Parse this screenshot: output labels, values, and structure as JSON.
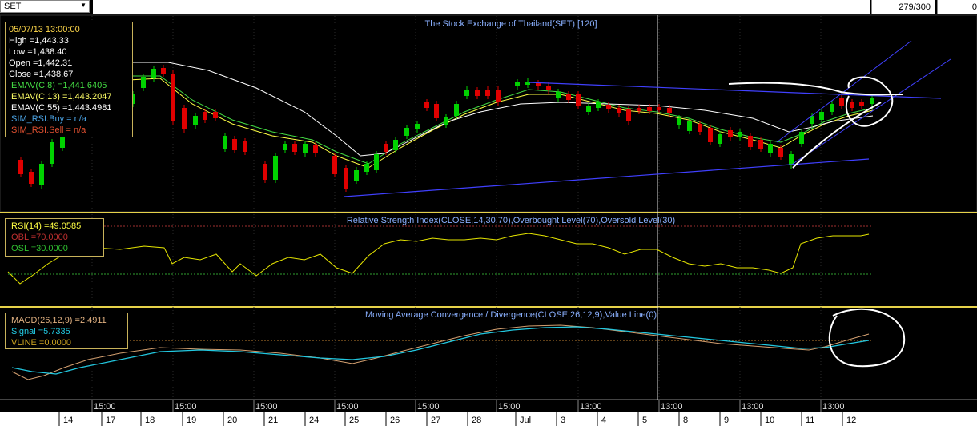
{
  "toolbar": {
    "symbol": "SET",
    "dropdown_icon": "triangle-down-icon",
    "page_counter": "279/300",
    "right_value": "0"
  },
  "panels": {
    "price": {
      "title": "The Stock Exchange of Thailand(SET) [120]",
      "info": {
        "datetime": "05/07/13 13:00:00",
        "high": "High  =1,443.33",
        "low": "Low  =1,438.40",
        "open": "Open  =1,442.31",
        "close": "Close  =1,438.67",
        "emav8": ".EMAV(C,8)   =1,441.6405",
        "emav13": ".EMAV(C,13)  =1,443.2047",
        "emav55": ".EMAV(C,55)  =1,443.4981",
        "rsibuy": ".SIM_RSI.Buy    = n/a",
        "rsisell": ".SIM_RSI.Sell   = n/a"
      }
    },
    "rsi": {
      "title": "Relative Strength Index(CLOSE,14,30,70),Overbought Level(70),Oversold Level(30)",
      "info": {
        "rsi": ".RSI(14)   =49.0585",
        "obl": ".OBL   =70.0000",
        "osl": ".OSL   =30.0000"
      }
    },
    "macd": {
      "title": "Moving Average Convergence / Divergence(CLOSE,26,12,9),Value Line(0)",
      "info": {
        "macd": ".MACD(26,12,9)   =2.4911",
        "signal": ".Signal   =5.7335",
        "vline": ".VLINE   =0.0000"
      }
    }
  },
  "time_axis": {
    "hour_labels": [
      "15:00",
      "15:00",
      "15:00",
      "15:00",
      "15:00",
      "15:00",
      "13:00",
      "13:00",
      "13:00",
      "13:00"
    ],
    "day_labels": [
      "14",
      "17",
      "18",
      "19",
      "20",
      "21",
      "24",
      "25",
      "26",
      "27",
      "28",
      "Jul",
      "3",
      "4",
      "5",
      "8",
      "9",
      "10",
      "11",
      "12"
    ]
  },
  "colors": {
    "up": "#00d200",
    "down": "#e00000",
    "ema8": "#ffff44",
    "ema13": "#44dd44",
    "ema55": "#ffffff",
    "trend": "#4040ff",
    "rsi": "#e6e600",
    "macd": "#d4a070",
    "signal": "#22c8e0",
    "border": "#e6d24a"
  },
  "chart_data": [
    {
      "type": "candlestick",
      "title": "The Stock Exchange of Thailand(SET) [120]",
      "x": [
        "14",
        "17",
        "18",
        "19",
        "20",
        "21",
        "24",
        "25",
        "26",
        "27",
        "28",
        "Jul",
        "3",
        "4",
        "5",
        "8",
        "9",
        "10",
        "11",
        "12"
      ],
      "last_bar": {
        "datetime": "05/07/13 13:00:00",
        "open": 1442.31,
        "high": 1443.33,
        "low": 1438.4,
        "close": 1438.67
      },
      "series": [
        {
          "name": ".EMAV(C,8)",
          "last": 1441.6405
        },
        {
          "name": ".EMAV(C,13)",
          "last": 1443.2047
        },
        {
          "name": ".EMAV(C,55)",
          "last": 1443.4981
        }
      ]
    },
    {
      "type": "line",
      "title": "Relative Strength Index(CLOSE,14,30,70),Overbought Level(70),Oversold Level(30)",
      "series": [
        {
          "name": ".RSI(14)",
          "last": 49.0585
        }
      ],
      "levels": {
        "overbought": 70,
        "oversold": 30
      }
    },
    {
      "type": "line",
      "title": "Moving Average Convergence / Divergence(CLOSE,26,12,9),Value Line(0)",
      "series": [
        {
          "name": ".MACD(26,12,9)",
          "last": 2.4911
        },
        {
          "name": ".Signal",
          "last": 5.7335
        }
      ],
      "value_line": 0
    }
  ]
}
